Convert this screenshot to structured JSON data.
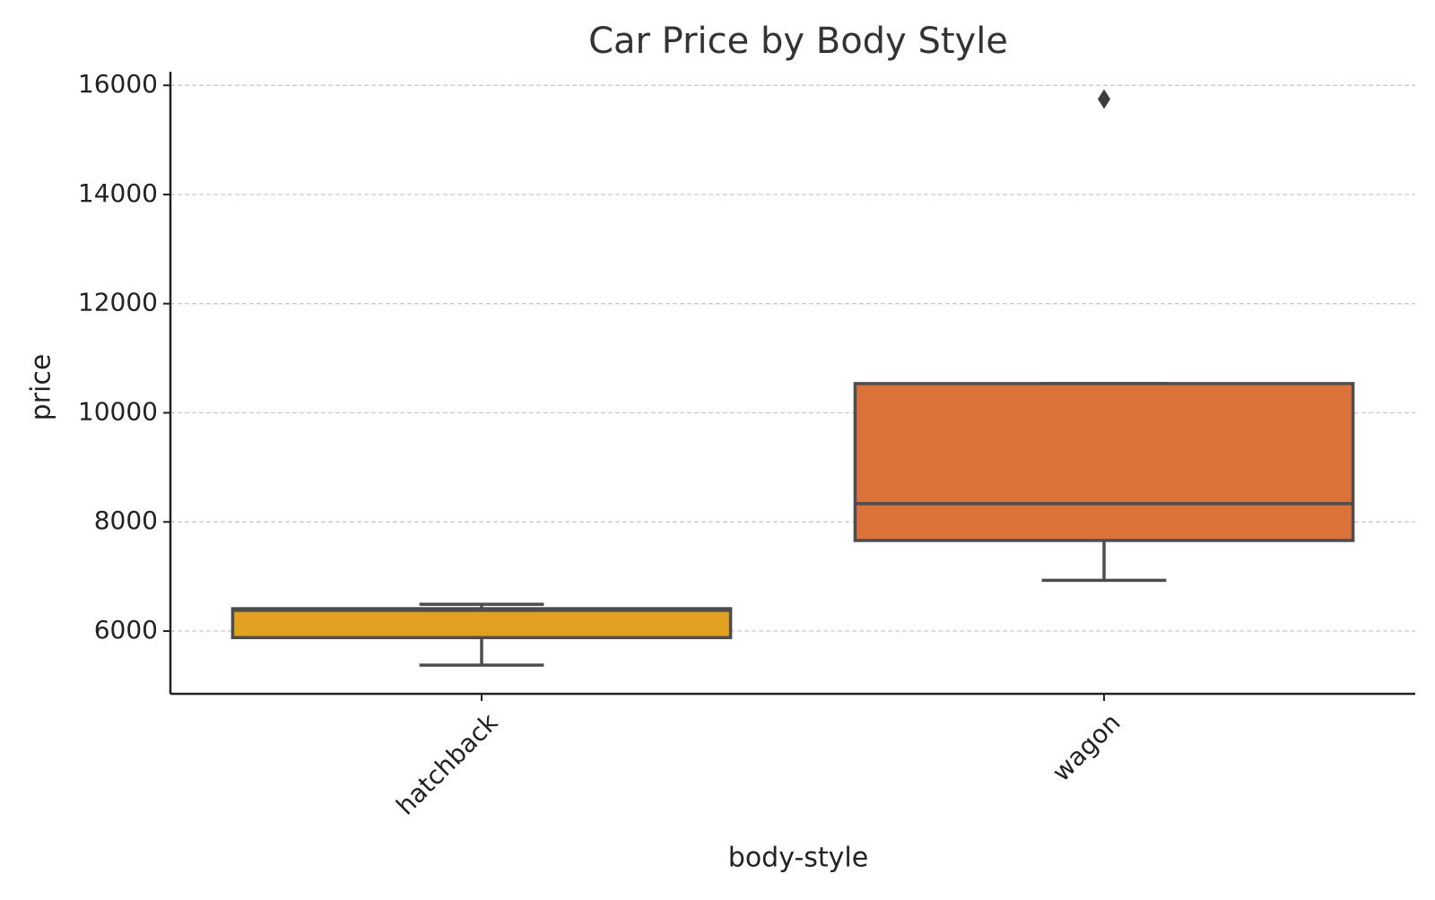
{
  "chart_data": {
    "type": "box",
    "title": "Car Price by Body Style",
    "x_label": "body-style",
    "y_label": "price",
    "categories": [
      "hatchback",
      "wagon"
    ],
    "boxes": [
      {
        "whislo": 5375,
        "q1": 5880,
        "med": 6380,
        "q3": 6410,
        "whishi": 6490,
        "fliers": [],
        "color": "#e1a01f"
      },
      {
        "whislo": 6930,
        "q1": 7660,
        "med": 8335,
        "q3": 10535,
        "whishi": 10535,
        "fliers": [
          15750
        ],
        "color": "#db723a"
      }
    ],
    "ylim": [
      4850,
      16250
    ],
    "yticks": [
      6000,
      8000,
      10000,
      12000,
      14000,
      16000
    ],
    "grid": true
  }
}
